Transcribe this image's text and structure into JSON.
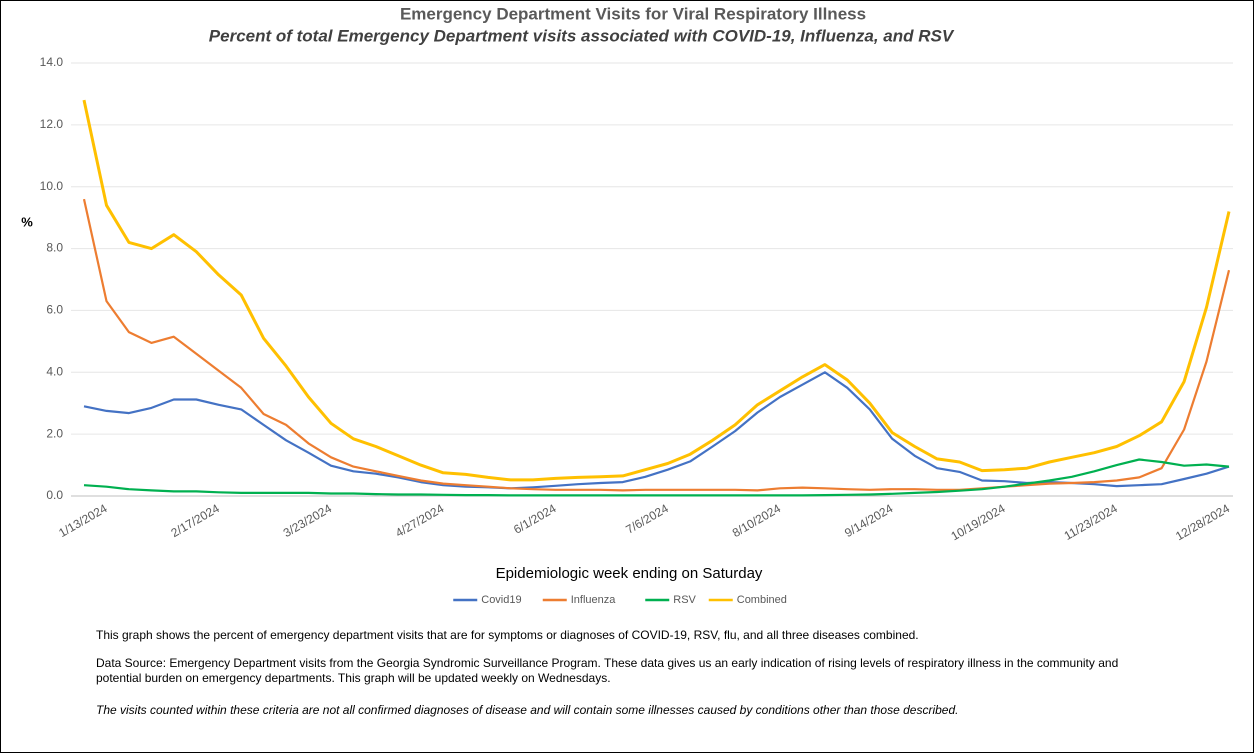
{
  "chart_data": {
    "type": "line",
    "title": "Emergency Department Visits for Viral Respiratory Illness",
    "subtitle": "Percent of total Emergency Department visits associated with COVID-19, Influenza, and RSV",
    "y_label": "%",
    "x_label": "Epidemiologic week ending on Saturday",
    "categories": [
      null,
      "1/13/2024",
      null,
      null,
      null,
      null,
      "2/17/2024",
      null,
      null,
      null,
      null,
      "3/23/2024",
      null,
      null,
      null,
      null,
      "4/27/2024",
      null,
      null,
      null,
      null,
      "6/1/2024",
      null,
      null,
      null,
      null,
      "7/6/2024",
      null,
      null,
      null,
      null,
      "8/10/2024",
      null,
      null,
      null,
      null,
      "9/14/2024",
      null,
      null,
      null,
      null,
      "10/19/2024",
      null,
      null,
      null,
      null,
      "11/23/2024",
      null,
      null,
      null,
      null,
      "12/28/2024"
    ],
    "series": [
      {
        "name": "Covid19",
        "color": "#4472c4",
        "values": [
          2.9,
          2.75,
          2.68,
          2.85,
          3.12,
          3.12,
          2.95,
          2.8,
          2.3,
          1.8,
          1.4,
          0.98,
          0.8,
          0.72,
          0.6,
          0.45,
          0.35,
          0.3,
          0.28,
          0.25,
          0.28,
          0.33,
          0.38,
          0.42,
          0.45,
          0.62,
          0.85,
          1.12,
          1.6,
          2.1,
          2.7,
          3.2,
          3.6,
          4.0,
          3.5,
          2.8,
          1.85,
          1.3,
          0.9,
          0.78,
          0.5,
          0.48,
          0.42,
          0.45,
          0.42,
          0.38,
          0.32,
          0.35,
          0.38,
          0.55,
          0.72,
          0.95
        ]
      },
      {
        "name": "Influenza",
        "color": "#ed7d31",
        "values": [
          9.6,
          6.3,
          5.3,
          4.95,
          5.15,
          4.6,
          4.05,
          3.5,
          2.65,
          2.3,
          1.7,
          1.25,
          0.95,
          0.8,
          0.65,
          0.5,
          0.4,
          0.35,
          0.3,
          0.25,
          0.22,
          0.2,
          0.2,
          0.2,
          0.18,
          0.2,
          0.2,
          0.2,
          0.2,
          0.2,
          0.18,
          0.25,
          0.27,
          0.25,
          0.22,
          0.2,
          0.22,
          0.22,
          0.2,
          0.2,
          0.25,
          0.3,
          0.35,
          0.4,
          0.42,
          0.45,
          0.5,
          0.6,
          0.9,
          2.15,
          4.35,
          7.3
        ]
      },
      {
        "name": "RSV",
        "color": "#00b050",
        "values": [
          0.35,
          0.3,
          0.22,
          0.18,
          0.15,
          0.15,
          0.12,
          0.1,
          0.1,
          0.1,
          0.1,
          0.08,
          0.08,
          0.06,
          0.05,
          0.05,
          0.04,
          0.03,
          0.03,
          0.02,
          0.02,
          0.02,
          0.02,
          0.02,
          0.02,
          0.02,
          0.02,
          0.02,
          0.02,
          0.02,
          0.02,
          0.02,
          0.02,
          0.03,
          0.04,
          0.05,
          0.07,
          0.1,
          0.13,
          0.17,
          0.22,
          0.3,
          0.4,
          0.5,
          0.62,
          0.8,
          1.0,
          1.18,
          1.1,
          0.98,
          1.02,
          0.95
        ]
      },
      {
        "name": "Combined",
        "color": "#ffc000",
        "values": [
          12.8,
          9.4,
          8.2,
          8.0,
          8.45,
          7.9,
          7.15,
          6.5,
          5.1,
          4.2,
          3.2,
          2.35,
          1.85,
          1.6,
          1.3,
          1.0,
          0.75,
          0.7,
          0.6,
          0.52,
          0.52,
          0.57,
          0.6,
          0.62,
          0.65,
          0.85,
          1.05,
          1.35,
          1.8,
          2.3,
          2.95,
          3.4,
          3.85,
          4.25,
          3.75,
          3.0,
          2.05,
          1.6,
          1.2,
          1.1,
          0.82,
          0.85,
          0.9,
          1.1,
          1.25,
          1.4,
          1.6,
          1.95,
          2.4,
          3.7,
          6.1,
          9.2
        ]
      }
    ],
    "ylim": [
      0,
      14
    ],
    "yticks": [
      {
        "value": 0,
        "label": "0.0"
      },
      {
        "value": 2,
        "label": "2.0"
      },
      {
        "value": 4,
        "label": "4.0"
      },
      {
        "value": 6,
        "label": "6.0"
      },
      {
        "value": 8,
        "label": "8.0"
      },
      {
        "value": 10,
        "label": "10.0"
      },
      {
        "value": 12,
        "label": "12.0"
      },
      {
        "value": 14,
        "label": "14.0"
      }
    ],
    "grid": true,
    "legend": "bottom"
  },
  "notes": [
    "This graph shows the percent of emergency department visits that are for symptoms or diagnoses of COVID-19, RSV, flu, and all three diseases combined.",
    "Data Source: Emergency Department visits from the Georgia Syndromic Surveillance Program. These data gives us an early indication of rising levels of respiratory illness in the community and potential burden on emergency departments. This graph will be updated weekly on Wednesdays.",
    "The visits counted within these criteria are not all confirmed diagnoses of disease and will contain some illnesses caused by conditions other than those described."
  ]
}
